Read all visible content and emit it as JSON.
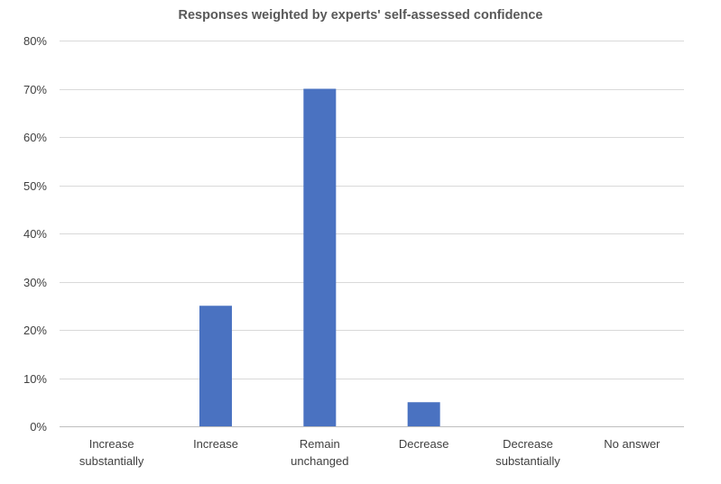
{
  "chart_data": {
    "type": "bar",
    "title": "Responses weighted by experts' self-assessed confidence",
    "xlabel": "",
    "ylabel": "",
    "categories": [
      [
        "Increase",
        "substantially"
      ],
      [
        "Increase"
      ],
      [
        "Remain",
        "unchanged"
      ],
      [
        "Decrease"
      ],
      [
        "Decrease",
        "substantially"
      ],
      [
        "No answer"
      ]
    ],
    "values": [
      0,
      25,
      70,
      5,
      0,
      0
    ],
    "ylim": [
      0,
      80
    ],
    "yticks": [
      0,
      10,
      20,
      30,
      40,
      50,
      60,
      70,
      80
    ],
    "ytick_labels": [
      "0%",
      "10%",
      "20%",
      "30%",
      "40%",
      "50%",
      "60%",
      "70%",
      "80%"
    ],
    "bar_color": "#4A72C1",
    "grid": true,
    "legend": "none"
  }
}
